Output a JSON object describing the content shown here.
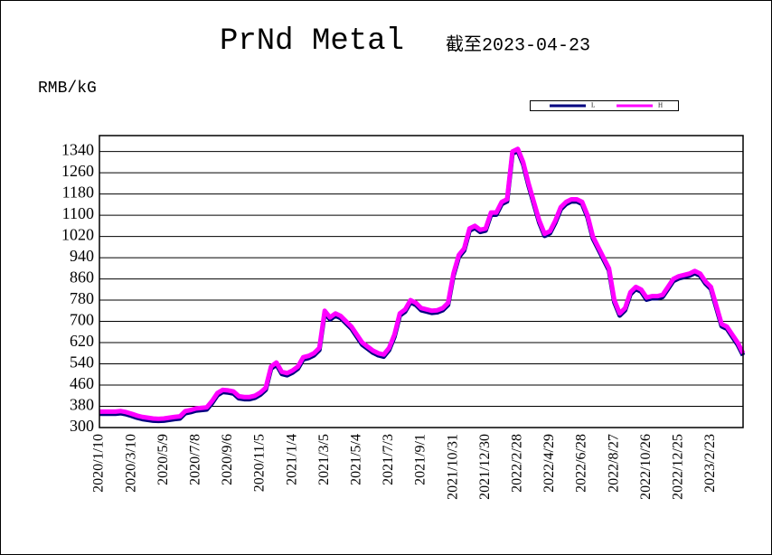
{
  "chart_data": {
    "type": "line",
    "title": "PrNd Metal",
    "subtitle": "截至2023-04-23",
    "y_label": "RMB/kG",
    "categories": [
      "2020/1/10",
      null,
      null,
      null,
      null,
      null,
      "2020/3/10",
      null,
      null,
      null,
      null,
      null,
      "2020/5/9",
      null,
      null,
      null,
      null,
      null,
      "2020/7/8",
      null,
      null,
      null,
      null,
      null,
      "2020/9/6",
      null,
      null,
      null,
      null,
      null,
      "2020/11/5",
      null,
      null,
      null,
      null,
      null,
      "2021/1/4",
      null,
      null,
      null,
      null,
      null,
      "2021/3/5",
      null,
      null,
      null,
      null,
      null,
      "2021/5/4",
      null,
      null,
      null,
      null,
      null,
      "2021/7/3",
      null,
      null,
      null,
      null,
      null,
      "2021/9/1",
      null,
      null,
      null,
      null,
      null,
      "2021/10/31",
      null,
      null,
      null,
      null,
      null,
      "2021/12/30",
      null,
      null,
      null,
      null,
      null,
      "2022/2/28",
      null,
      null,
      null,
      null,
      null,
      "2022/4/29",
      null,
      null,
      null,
      null,
      null,
      "2022/6/28",
      null,
      null,
      null,
      null,
      null,
      "2022/8/27",
      null,
      null,
      null,
      null,
      null,
      "2022/10/26",
      null,
      null,
      null,
      null,
      null,
      "2022/12/25",
      null,
      null,
      null,
      null,
      null,
      "2023/2/23",
      null,
      null,
      null,
      null,
      null,
      null
    ],
    "series": [
      {
        "name": "L",
        "color": "#000080",
        "values": [
          352,
          352,
          352,
          352,
          354,
          350,
          344,
          337,
          332,
          329,
          326,
          325,
          326,
          329,
          332,
          334,
          354,
          358,
          364,
          366,
          368,
          392,
          422,
          434,
          432,
          428,
          410,
          407,
          407,
          412,
          424,
          442,
          522,
          537,
          502,
          497,
          507,
          522,
          557,
          562,
          572,
          592,
          732,
          707,
          722,
          712,
          692,
          672,
          642,
          612,
          597,
          582,
          572,
          567,
          592,
          642,
          722,
          737,
          772,
          762,
          742,
          737,
          732,
          734,
          742,
          762,
          872,
          942,
          967,
          1042,
          1052,
          1037,
          1042,
          1102,
          1102,
          1142,
          1152,
          1332,
          1342,
          1292,
          1212,
          1142,
          1072,
          1022,
          1032,
          1072,
          1122,
          1142,
          1152,
          1152,
          1142,
          1092,
          1012,
          972,
          932,
          892,
          772,
          722,
          742,
          802,
          822,
          812,
          782,
          787,
          787,
          792,
          822,
          852,
          862,
          867,
          872,
          882,
          872,
          842,
          822,
          752,
          682,
          672,
          642,
          612,
          572
        ]
      },
      {
        "name": "H",
        "color": "#ff00ff",
        "values": [
          360,
          360,
          360,
          360,
          362,
          358,
          352,
          345,
          340,
          337,
          334,
          333,
          334,
          337,
          340,
          342,
          362,
          366,
          372,
          374,
          376,
          400,
          430,
          442,
          440,
          436,
          418,
          415,
          415,
          420,
          432,
          450,
          530,
          545,
          510,
          505,
          515,
          530,
          565,
          570,
          580,
          600,
          740,
          715,
          730,
          720,
          700,
          680,
          650,
          620,
          605,
          590,
          580,
          575,
          600,
          650,
          730,
          745,
          780,
          770,
          750,
          745,
          740,
          742,
          750,
          770,
          880,
          950,
          975,
          1050,
          1060,
          1045,
          1050,
          1110,
          1110,
          1150,
          1160,
          1340,
          1350,
          1300,
          1220,
          1150,
          1080,
          1030,
          1040,
          1080,
          1130,
          1150,
          1160,
          1160,
          1150,
          1100,
          1020,
          980,
          940,
          900,
          780,
          730,
          750,
          810,
          830,
          820,
          790,
          795,
          795,
          800,
          830,
          860,
          870,
          875,
          880,
          890,
          880,
          850,
          830,
          760,
          690,
          680,
          650,
          620,
          580
        ]
      }
    ],
    "ylim": [
      300,
      1400
    ],
    "yticks": [
      300,
      380,
      460,
      540,
      620,
      700,
      780,
      860,
      940,
      1020,
      1100,
      1180,
      1260,
      1340
    ],
    "grid": true
  }
}
